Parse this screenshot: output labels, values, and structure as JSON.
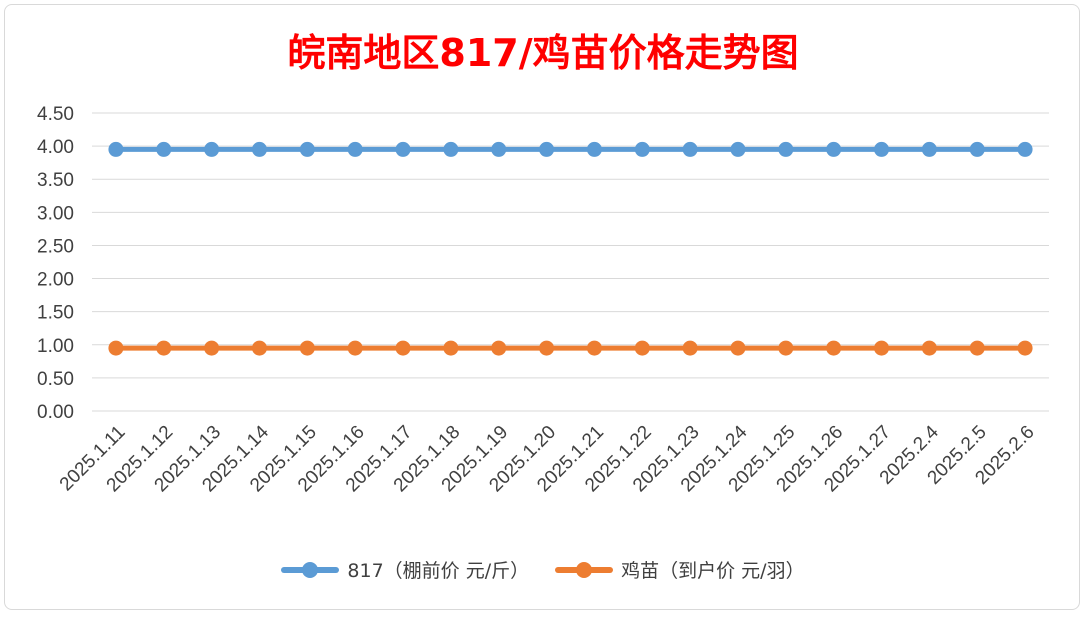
{
  "chart_data": {
    "type": "line",
    "title": "皖南地区817/鸡苗价格走势图",
    "categories": [
      "2025.1.11",
      "2025.1.12",
      "2025.1.13",
      "2025.1.14",
      "2025.1.15",
      "2025.1.16",
      "2025.1.17",
      "2025.1.18",
      "2025.1.19",
      "2025.1.20",
      "2025.1.21",
      "2025.1.22",
      "2025.1.23",
      "2025.1.24",
      "2025.1.25",
      "2025.1.26",
      "2025.1.27",
      "2025.2.4",
      "2025.2.5",
      "2025.2.6"
    ],
    "series": [
      {
        "name": "817（棚前价 元/斤）",
        "color": "#5b9bd5",
        "values": [
          3.95,
          3.95,
          3.95,
          3.95,
          3.95,
          3.95,
          3.95,
          3.95,
          3.95,
          3.95,
          3.95,
          3.95,
          3.95,
          3.95,
          3.95,
          3.95,
          3.95,
          3.95,
          3.95,
          3.95
        ]
      },
      {
        "name": "鸡苗（到户价 元/羽）",
        "color": "#ed7d31",
        "values": [
          0.95,
          0.95,
          0.95,
          0.95,
          0.95,
          0.95,
          0.95,
          0.95,
          0.95,
          0.95,
          0.95,
          0.95,
          0.95,
          0.95,
          0.95,
          0.95,
          0.95,
          0.95,
          0.95,
          0.95
        ]
      }
    ],
    "yticks": [
      "0.00",
      "0.50",
      "1.00",
      "1.50",
      "2.00",
      "2.50",
      "3.00",
      "3.50",
      "4.00",
      "4.50"
    ],
    "ylim": [
      0,
      4.5
    ],
    "grid": true,
    "legend_position": "bottom"
  }
}
